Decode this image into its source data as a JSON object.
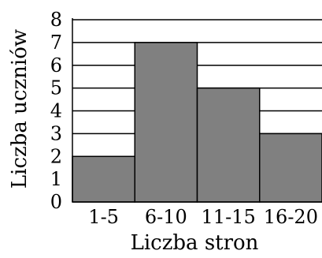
{
  "chart_data": {
    "type": "bar",
    "categories": [
      "1-5",
      "6-10",
      "11-15",
      "16-20"
    ],
    "values": [
      2,
      7,
      5,
      3
    ],
    "title": "",
    "xlabel": "Liczba stron",
    "ylabel": "Liczba uczniów",
    "ylim": [
      0,
      8
    ],
    "yticks": [
      0,
      1,
      2,
      3,
      4,
      5,
      6,
      7,
      8
    ],
    "grid": true,
    "bar_color": "#808080",
    "grid_color": "#000000"
  }
}
